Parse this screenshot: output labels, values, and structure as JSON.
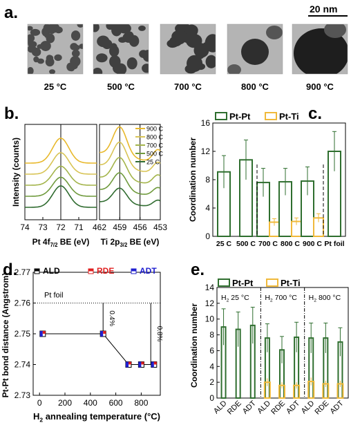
{
  "panels": {
    "a": {
      "label": "a.",
      "scale_bar": "20 nm",
      "images": [
        {
          "caption": "25 °C"
        },
        {
          "caption": "500 °C"
        },
        {
          "caption": "700 °C"
        },
        {
          "caption": "800 °C"
        },
        {
          "caption": "900 °C"
        }
      ]
    },
    "b": {
      "label": "b."
    },
    "c": {
      "label": "c."
    },
    "d": {
      "label": "d."
    },
    "e": {
      "label": "e."
    }
  },
  "chart_data": [
    {
      "panel": "b",
      "type": "line",
      "ylabel": "Intensity (counts)",
      "legend": [
        "900 C",
        "800 C",
        "700 C",
        "500 C",
        "25 C"
      ],
      "legend_colors": [
        "#e8b82a",
        "#d8c455",
        "#a3b44a",
        "#6f9a3c",
        "#2f6b2f"
      ],
      "subplots": [
        {
          "xlabel": "Pt 4f7/2 BE (eV)",
          "xlabel_main": "Pt 4f",
          "xlabel_sub": "7/2",
          "xlabel_tail": " BE (eV)",
          "xlim": [
            74,
            70
          ],
          "xticks": [
            "74",
            "73",
            "72",
            "71"
          ],
          "xtick_values": [
            74,
            73,
            72,
            71
          ],
          "reference_line": 72,
          "peak_center": 72,
          "peak_heights": {
            "900 C": 0.72,
            "800 C": 0.62,
            "700 C": 0.55,
            "500 C": 0.55,
            "25 C": 0.62
          }
        },
        {
          "xlabel": "Ti 2p3/2 BE (eV)",
          "xlabel_main": "Ti 2p",
          "xlabel_sub": "3/2",
          "xlabel_tail": " BE (eV)",
          "xlim": [
            462,
            453
          ],
          "xticks": [
            "462",
            "459",
            "456",
            "453"
          ],
          "xtick_values": [
            462,
            459,
            456,
            453
          ],
          "reference_lines": [
            459,
            456
          ],
          "peak_center": 459,
          "peak_heights": {
            "900 C": 0.85,
            "800 C": 0.75,
            "700 C": 0.65,
            "500 C": 0.55,
            "25 C": 0.45
          }
        }
      ]
    },
    {
      "panel": "c",
      "type": "bar",
      "ylabel": "Coordination number",
      "ylim": [
        0,
        16
      ],
      "yticks": [
        "0",
        "4",
        "8",
        "12",
        "16"
      ],
      "ytick_values": [
        0,
        4,
        8,
        12,
        16
      ],
      "categories": [
        "25 C",
        "500 C",
        "700 C",
        "800 C",
        "900 C",
        "Pt foil"
      ],
      "series": [
        {
          "name": "Pt-Pt",
          "color": "#2e6e2e",
          "values": [
            9.1,
            10.8,
            7.6,
            7.7,
            7.8,
            12.0
          ],
          "errors": [
            2.3,
            2.8,
            2.0,
            1.9,
            2.0,
            2.8
          ]
        },
        {
          "name": "Pt-Ti",
          "color": "#f0b93a",
          "values": [
            null,
            null,
            2.0,
            2.1,
            2.6,
            null
          ],
          "errors": [
            null,
            null,
            0.5,
            0.5,
            0.6,
            null
          ]
        }
      ],
      "dashed_separators_after": [
        1,
        4
      ]
    },
    {
      "panel": "d",
      "type": "scatter",
      "ylabel": "Pt-Pt bond distance (Angstrom)",
      "xlabel_main": "H",
      "xlabel_sub": "2",
      "xlabel_tail": " annealing temperature (°C)",
      "xlim": [
        -50,
        950
      ],
      "ylim": [
        2.73,
        2.77
      ],
      "xticks": [
        "0",
        "200",
        "400",
        "600",
        "800"
      ],
      "xtick_values": [
        0,
        200,
        400,
        600,
        800
      ],
      "yticks": [
        "2.73",
        "2.74",
        "2.75",
        "2.76",
        "2.77"
      ],
      "ytick_values": [
        2.73,
        2.74,
        2.75,
        2.76,
        2.77
      ],
      "series": [
        {
          "name": "ALD",
          "color": "#000000",
          "x": [
            25,
            500,
            700,
            800,
            900
          ],
          "y": [
            2.75,
            2.75,
            2.74,
            2.74,
            2.74
          ]
        },
        {
          "name": "RDE",
          "color": "#e02020",
          "x": [
            25,
            500,
            700,
            800,
            900
          ],
          "y": [
            2.75,
            2.75,
            2.74,
            2.74,
            2.74
          ]
        },
        {
          "name": "ADT",
          "color": "#2020d0",
          "x": [
            25,
            500,
            700,
            800,
            900
          ],
          "y": [
            2.75,
            2.75,
            2.74,
            2.74,
            2.74
          ]
        }
      ],
      "reference_line": {
        "label": "Pt foil",
        "y": 2.76
      },
      "annotations": [
        {
          "text": "0.4%",
          "x": 500,
          "y_from": 2.75,
          "y_to": 2.76
        },
        {
          "text": "0.8%",
          "x": 875,
          "y_from": 2.74,
          "y_to": 2.76
        }
      ]
    },
    {
      "panel": "e",
      "type": "bar",
      "ylabel": "Coordination number",
      "ylim": [
        0,
        14
      ],
      "yticks": [
        "0",
        "2",
        "4",
        "6",
        "8",
        "10",
        "12",
        "14"
      ],
      "ytick_values": [
        0,
        2,
        4,
        6,
        8,
        10,
        12,
        14
      ],
      "groups": [
        {
          "label_main": "H",
          "label_sub": "2",
          "label_tail": " 25 °C"
        },
        {
          "label_main": "H",
          "label_sub": "2",
          "label_tail": " 700 °C"
        },
        {
          "label_main": "H",
          "label_sub": "2",
          "label_tail": " 800 °C"
        }
      ],
      "categories": [
        "ALD",
        "RDE",
        "ADT",
        "ALD",
        "RDE",
        "ADT",
        "ALD",
        "RDE",
        "ADT"
      ],
      "series": [
        {
          "name": "Pt-Pt",
          "color": "#2e6e2e",
          "values": [
            9.0,
            8.7,
            9.2,
            7.6,
            6.1,
            7.7,
            7.6,
            7.6,
            7.1
          ],
          "errors": [
            2.3,
            2.2,
            2.3,
            1.8,
            1.7,
            1.9,
            1.9,
            1.9,
            1.8
          ]
        },
        {
          "name": "Pt-Ti",
          "color": "#f0b93a",
          "values": [
            null,
            null,
            null,
            2.0,
            1.6,
            1.6,
            2.1,
            1.8,
            1.8
          ],
          "errors": [
            null,
            null,
            null,
            0.5,
            0.4,
            0.4,
            0.5,
            0.4,
            0.4
          ]
        }
      ]
    }
  ]
}
